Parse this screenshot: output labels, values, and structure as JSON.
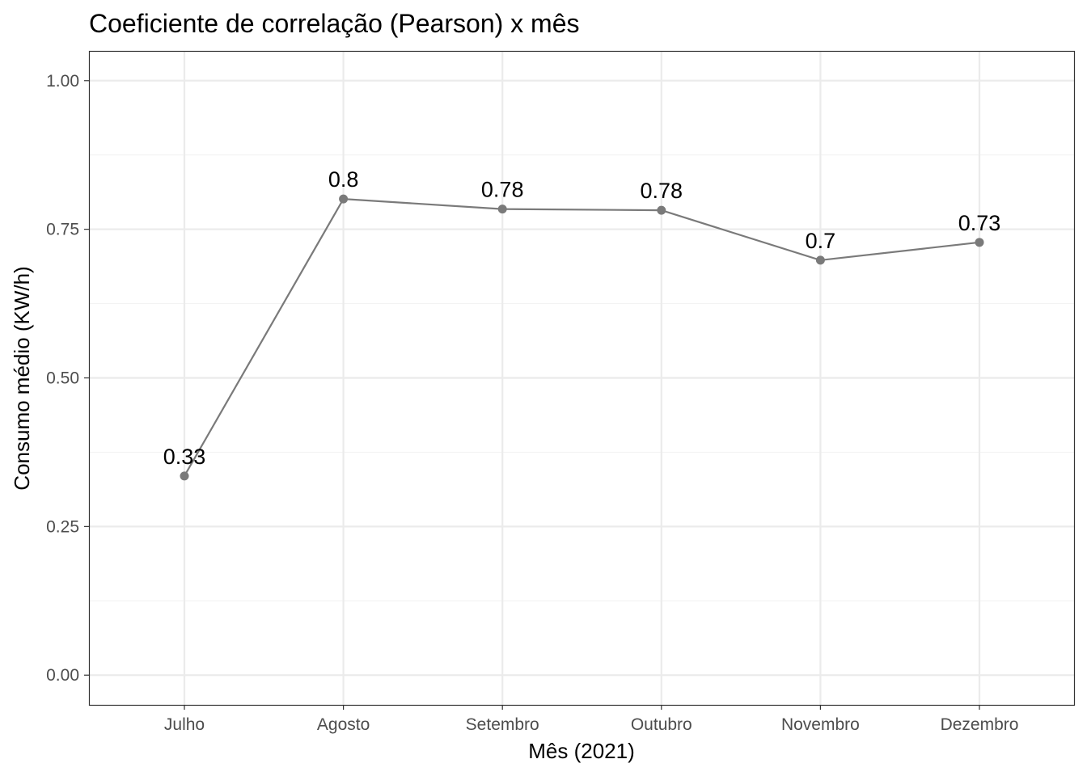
{
  "chart_data": {
    "type": "line",
    "title": "Coeficiente de correlação (Pearson) x mês",
    "xlabel": "Mês (2021)",
    "ylabel": "Consumo médio (KW/h)",
    "categories": [
      "Julho",
      "Agosto",
      "Setembro",
      "Outubro",
      "Novembro",
      "Dezembro"
    ],
    "series": [
      {
        "values": [
          0.335,
          0.801,
          0.784,
          0.782,
          0.698,
          0.728
        ],
        "labels": [
          "0.33",
          "0.8",
          "0.78",
          "0.78",
          "0.7",
          "0.73"
        ],
        "color": "#7a7a7a"
      }
    ],
    "ylim": [
      -0.05,
      1.05
    ],
    "yticks": [
      0.0,
      0.25,
      0.5,
      0.75,
      1.0
    ],
    "ytick_labels": [
      "0.00",
      "0.25",
      "0.50",
      "0.75",
      "1.00"
    ],
    "grid": true,
    "legend": "none",
    "colors": {
      "panel_border": "#333333",
      "grid_major": "#ebebeb",
      "grid_minor": "#f3f3f3",
      "tick": "#333333"
    }
  }
}
